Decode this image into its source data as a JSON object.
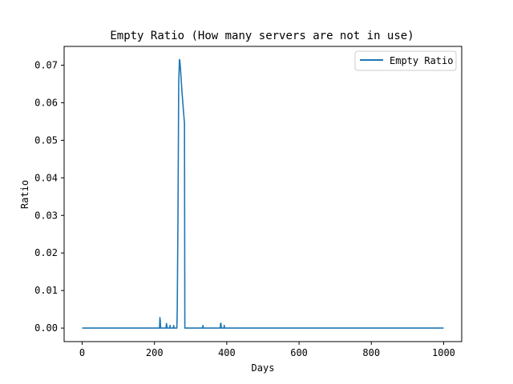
{
  "chart_data": {
    "type": "line",
    "title": "Empty Ratio (How many servers are not in use)",
    "xlabel": "Days",
    "ylabel": "Ratio",
    "xlim": [
      -50,
      1050
    ],
    "ylim": [
      -0.0036,
      0.075
    ],
    "xticks": [
      0,
      200,
      400,
      600,
      800,
      1000
    ],
    "xtick_labels": [
      "0",
      "200",
      "400",
      "600",
      "800",
      "1000"
    ],
    "yticks": [
      0.0,
      0.01,
      0.02,
      0.03,
      0.04,
      0.05,
      0.06,
      0.07
    ],
    "ytick_labels": [
      "0.00",
      "0.01",
      "0.02",
      "0.03",
      "0.04",
      "0.05",
      "0.06",
      "0.07"
    ],
    "grid": false,
    "legend_position": "top-right",
    "series": [
      {
        "name": "Empty Ratio",
        "color": "#1f77b4",
        "x": [
          0,
          214,
          215,
          216,
          217,
          232,
          233,
          234,
          235,
          242,
          243,
          244,
          252,
          253,
          254,
          262,
          263,
          265,
          267,
          269,
          270,
          272,
          276,
          280,
          283,
          284,
          285,
          333,
          334,
          335,
          382,
          383,
          384,
          385,
          392,
          393,
          394,
          1000
        ],
        "y": [
          0,
          0,
          0.0028,
          0.002,
          0,
          0,
          0.0012,
          0.0008,
          0,
          0,
          0.0007,
          0,
          0,
          0.0007,
          0,
          0,
          0.005,
          0.03,
          0.065,
          0.0715,
          0.0713,
          0.069,
          0.063,
          0.058,
          0.0545,
          0,
          0,
          0,
          0.0007,
          0,
          0,
          0.0013,
          0.0012,
          0,
          0,
          0.0007,
          0,
          0
        ]
      }
    ]
  }
}
